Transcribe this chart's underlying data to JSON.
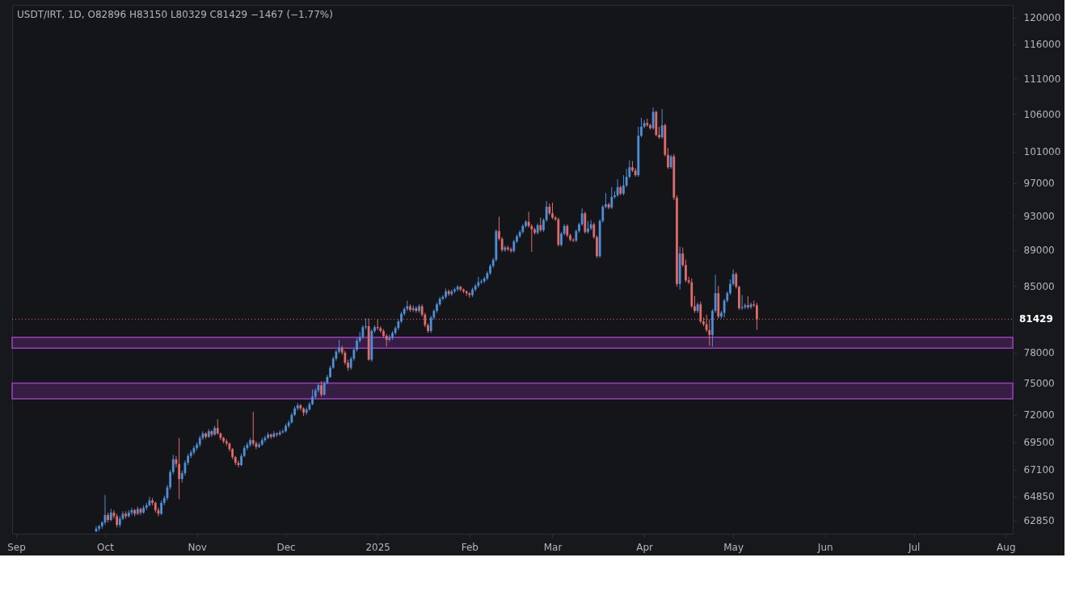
{
  "chart_data": {
    "type": "candlestick",
    "title": "USDT/IRT, 1D, O82896 H83150 L80329 C81429 −1467 (−1.77%)",
    "colors": [
      "#4d8fd8",
      "#4d8fd8",
      "#4d8fd8",
      "#4d8fd8",
      "#e06b6b",
      "#4d8fd8",
      "#e06b6b",
      "#e06b6b",
      "#4d8fd8",
      "#4d8fd8",
      "#e06b6b",
      "#4d8fd8",
      "#4d8fd8",
      "#e06b6b",
      "#4d8fd8",
      "#e06b6b",
      "#4d8fd8",
      "#4d8fd8",
      "#4d8fd8",
      "#e06b6b",
      "#e06b6b",
      "#e06b6b",
      "#4d8fd8",
      "#4d8fd8",
      "#4d8fd8",
      "#4d8fd8",
      "#4d8fd8",
      "#e06b6b",
      "#e06b6b",
      "#4d8fd8",
      "#4d8fd8",
      "#4d8fd8",
      "#4d8fd8",
      "#4d8fd8",
      "#4d8fd8",
      "#4d8fd8",
      "#4d8fd8",
      "#e06b6b",
      "#4d8fd8",
      "#e06b6b",
      "#4d8fd8",
      "#e06b6b",
      "#e06b6b",
      "#e06b6b",
      "#e06b6b",
      "#e06b6b",
      "#e06b6b",
      "#e06b6b",
      "#e06b6b",
      "#4d8fd8",
      "#4d8fd8",
      "#4d8fd8",
      "#4d8fd8",
      "#e06b6b",
      "#e06b6b",
      "#4d8fd8",
      "#4d8fd8",
      "#4d8fd8",
      "#4d8fd8",
      "#e06b6b",
      "#4d8fd8",
      "#e06b6b",
      "#4d8fd8",
      "#4d8fd8",
      "#4d8fd8",
      "#4d8fd8",
      "#4d8fd8",
      "#4d8fd8",
      "#4d8fd8",
      "#e06b6b",
      "#e06b6b",
      "#4d8fd8",
      "#4d8fd8",
      "#4d8fd8",
      "#4d8fd8",
      "#4d8fd8",
      "#e06b6b",
      "#4d8fd8",
      "#4d8fd8",
      "#4d8fd8",
      "#4d8fd8",
      "#4d8fd8",
      "#4d8fd8",
      "#e06b6b",
      "#e06b6b",
      "#e06b6b",
      "#4d8fd8",
      "#4d8fd8",
      "#4d8fd8",
      "#4d8fd8",
      "#4d8fd8",
      "#4d8fd8",
      "#e06b6b",
      "#4d8fd8",
      "#4d8fd8",
      "#e06b6b",
      "#e06b6b",
      "#e06b6b",
      "#e06b6b",
      "#4d8fd8",
      "#4d8fd8",
      "#4d8fd8",
      "#4d8fd8",
      "#4d8fd8",
      "#4d8fd8",
      "#4d8fd8",
      "#e06b6b",
      "#4d8fd8",
      "#e06b6b",
      "#4d8fd8",
      "#e06b6b",
      "#e06b6b",
      "#e06b6b",
      "#4d8fd8",
      "#4d8fd8",
      "#4d8fd8",
      "#4d8fd8",
      "#4d8fd8",
      "#4d8fd8",
      "#e06b6b",
      "#4d8fd8",
      "#4d8fd8",
      "#4d8fd8",
      "#e06b6b",
      "#e06b6b",
      "#e06b6b",
      "#e06b6b",
      "#4d8fd8",
      "#4d8fd8",
      "#4d8fd8",
      "#4d8fd8",
      "#4d8fd8",
      "#4d8fd8",
      "#4d8fd8",
      "#4d8fd8",
      "#4d8fd8",
      "#e06b6b",
      "#e06b6b",
      "#4d8fd8",
      "#e06b6b",
      "#e06b6b",
      "#4d8fd8",
      "#4d8fd8",
      "#4d8fd8",
      "#4d8fd8",
      "#4d8fd8",
      "#e06b6b",
      "#e06b6b",
      "#e06b6b",
      "#4d8fd8",
      "#e06b6b",
      "#4d8fd8",
      "#4d8fd8",
      "#e06b6b",
      "#e06b6b",
      "#e06b6b",
      "#e06b6b",
      "#4d8fd8",
      "#4d8fd8",
      "#e06b6b",
      "#e06b6b",
      "#e06b6b",
      "#4d8fd8",
      "#4d8fd8",
      "#4d8fd8",
      "#e06b6b",
      "#4d8fd8",
      "#4d8fd8",
      "#e06b6b",
      "#e06b6b",
      "#4d8fd8",
      "#4d8fd8",
      "#4d8fd8",
      "#e06b6b",
      "#4d8fd8",
      "#4d8fd8",
      "#4d8fd8",
      "#e06b6b",
      "#4d8fd8",
      "#4d8fd8",
      "#4d8fd8",
      "#e06b6b",
      "#e06b6b",
      "#4d8fd8",
      "#4d8fd8",
      "#4d8fd8",
      "#e06b6b",
      "#e06b6b",
      "#4d8fd8",
      "#e06b6b",
      "#e06b6b",
      "#4d8fd8",
      "#e06b6b",
      "#e06b6b",
      "#4d8fd8",
      "#e06b6b",
      "#e06b6b",
      "#4d8fd8",
      "#e06b6b",
      "#e06b6b",
      "#e06b6b",
      "#e06b6b",
      "#e06b6b",
      "#4d8fd8",
      "#e06b6b",
      "#e06b6b",
      "#e06b6b",
      "#e06b6b",
      "#4d8fd8",
      "#4d8fd8",
      "#e06b6b",
      "#4d8fd8",
      "#4d8fd8",
      "#4d8fd8",
      "#4d8fd8",
      "#4d8fd8",
      "#e06b6b",
      "#e06b6b",
      "#4d8fd8",
      "#4d8fd8",
      "#e06b6b",
      "#4d8fd8",
      "#e06b6b",
      "#e06b6b"
    ],
    "log": true,
    "xlim": [
      "2024-09-01",
      "2025-08-02"
    ],
    "xticks": [
      {
        "value": "2024-09-01",
        "label": "Sep"
      },
      {
        "value": "2024-10-01",
        "label": "Oct"
      },
      {
        "value": "2024-11-01",
        "label": "Nov"
      },
      {
        "value": "2024-12-01",
        "label": "Dec"
      },
      {
        "value": "2025-01-01",
        "label": "2025"
      },
      {
        "value": "2025-02-01",
        "label": "Feb"
      },
      {
        "value": "2025-03-01",
        "label": "Mar"
      },
      {
        "value": "2025-04-01",
        "label": "Apr"
      },
      {
        "value": "2025-05-01",
        "label": "May"
      },
      {
        "value": "2025-06-01",
        "label": "Jun"
      },
      {
        "value": "2025-07-01",
        "label": "Jul"
      },
      {
        "value": "2025-08-01",
        "label": "Aug"
      }
    ],
    "ylim": [
      61800,
      122000
    ],
    "yticks": [
      62850,
      64850,
      67100,
      69500,
      72000,
      75000,
      78000,
      85000,
      89000,
      93000,
      97000,
      101000,
      106000,
      111000,
      116000,
      120000
    ],
    "ref_lines": [
      {
        "axis": "y",
        "value": 81429,
        "label": "81429",
        "color": "#e5695c",
        "line_style": "dotted"
      }
    ],
    "bands": [
      {
        "axis": "y",
        "from": 73500,
        "to": 75000,
        "color": "#9c3cc0"
      },
      {
        "axis": "y",
        "from": 78450,
        "to": 79550,
        "color": "#9c3cc0"
      }
    ],
    "x": [
      "2024-09-28",
      "2024-09-29",
      "2024-09-30",
      "2024-10-01",
      "2024-10-02",
      "2024-10-03",
      "2024-10-04",
      "2024-10-05",
      "2024-10-06",
      "2024-10-07",
      "2024-10-08",
      "2024-10-09",
      "2024-10-10",
      "2024-10-11",
      "2024-10-12",
      "2024-10-13",
      "2024-10-14",
      "2024-10-15",
      "2024-10-16",
      "2024-10-17",
      "2024-10-18",
      "2024-10-19",
      "2024-10-20",
      "2024-10-21",
      "2024-10-22",
      "2024-10-23",
      "2024-10-24",
      "2024-10-25",
      "2024-10-26",
      "2024-10-27",
      "2024-10-28",
      "2024-10-29",
      "2024-10-30",
      "2024-10-31",
      "2024-11-01",
      "2024-11-02",
      "2024-11-03",
      "2024-11-04",
      "2024-11-05",
      "2024-11-06",
      "2024-11-07",
      "2024-11-08",
      "2024-11-09",
      "2024-11-10",
      "2024-11-11",
      "2024-11-12",
      "2024-11-13",
      "2024-11-14",
      "2024-11-15",
      "2024-11-16",
      "2024-11-17",
      "2024-11-18",
      "2024-11-19",
      "2024-11-20",
      "2024-11-21",
      "2024-11-22",
      "2024-11-23",
      "2024-11-24",
      "2024-11-25",
      "2024-11-26",
      "2024-11-27",
      "2024-11-28",
      "2024-11-29",
      "2024-11-30",
      "2024-12-01",
      "2024-12-02",
      "2024-12-03",
      "2024-12-04",
      "2024-12-05",
      "2024-12-06",
      "2024-12-07",
      "2024-12-08",
      "2024-12-09",
      "2024-12-10",
      "2024-12-11",
      "2024-12-12",
      "2024-12-13",
      "2024-12-14",
      "2024-12-15",
      "2024-12-16",
      "2024-12-17",
      "2024-12-18",
      "2024-12-19",
      "2024-12-20",
      "2024-12-21",
      "2024-12-22",
      "2024-12-23",
      "2024-12-24",
      "2024-12-25",
      "2024-12-26",
      "2024-12-27",
      "2024-12-28",
      "2024-12-29",
      "2024-12-30",
      "2024-12-31",
      "2025-01-01",
      "2025-01-02",
      "2025-01-03",
      "2025-01-04",
      "2025-01-05",
      "2025-01-06",
      "2025-01-07",
      "2025-01-08",
      "2025-01-09",
      "2025-01-10",
      "2025-01-11",
      "2025-01-12",
      "2025-01-13",
      "2025-01-14",
      "2025-01-15",
      "2025-01-16",
      "2025-01-17",
      "2025-01-18",
      "2025-01-19",
      "2025-01-20",
      "2025-01-21",
      "2025-01-22",
      "2025-01-23",
      "2025-01-24",
      "2025-01-25",
      "2025-01-26",
      "2025-01-27",
      "2025-01-28",
      "2025-01-29",
      "2025-01-30",
      "2025-01-31",
      "2025-02-01",
      "2025-02-02",
      "2025-02-03",
      "2025-02-04",
      "2025-02-05",
      "2025-02-06",
      "2025-02-07",
      "2025-02-08",
      "2025-02-09",
      "2025-02-10",
      "2025-02-11",
      "2025-02-12",
      "2025-02-13",
      "2025-02-14",
      "2025-02-15",
      "2025-02-16",
      "2025-02-17",
      "2025-02-18",
      "2025-02-19",
      "2025-02-20",
      "2025-02-21",
      "2025-02-22",
      "2025-02-23",
      "2025-02-24",
      "2025-02-25",
      "2025-02-26",
      "2025-02-27",
      "2025-02-28",
      "2025-03-01",
      "2025-03-02",
      "2025-03-03",
      "2025-03-04",
      "2025-03-05",
      "2025-03-06",
      "2025-03-07",
      "2025-03-08",
      "2025-03-09",
      "2025-03-10",
      "2025-03-11",
      "2025-03-12",
      "2025-03-13",
      "2025-03-14",
      "2025-03-15",
      "2025-03-16",
      "2025-03-17",
      "2025-03-18",
      "2025-03-19",
      "2025-03-20",
      "2025-03-21",
      "2025-03-22",
      "2025-03-23",
      "2025-03-24",
      "2025-03-25",
      "2025-03-26",
      "2025-03-27",
      "2025-03-28",
      "2025-03-29",
      "2025-03-30",
      "2025-03-31",
      "2025-04-01",
      "2025-04-02",
      "2025-04-03",
      "2025-04-04",
      "2025-04-05",
      "2025-04-06",
      "2025-04-07",
      "2025-04-08",
      "2025-04-09",
      "2025-04-10",
      "2025-04-11",
      "2025-04-12",
      "2025-04-13",
      "2025-04-14",
      "2025-04-15",
      "2025-04-16",
      "2025-04-17",
      "2025-04-18",
      "2025-04-19",
      "2025-04-20",
      "2025-04-21",
      "2025-04-22",
      "2025-04-23",
      "2025-04-24",
      "2025-04-25",
      "2025-04-26",
      "2025-04-27",
      "2025-04-28",
      "2025-04-29",
      "2025-04-30",
      "2025-05-01",
      "2025-05-02",
      "2025-05-03",
      "2025-05-04",
      "2025-05-05",
      "2025-05-06",
      "2025-05-07",
      "2025-05-08",
      "2025-05-09"
    ],
    "ohlc": [
      [
        62000,
        62400,
        61900,
        62200
      ],
      [
        62200,
        62500,
        62000,
        62400
      ],
      [
        62400,
        62800,
        62200,
        62700
      ],
      [
        62700,
        64950,
        62500,
        63300
      ],
      [
        63300,
        63500,
        62700,
        62900
      ],
      [
        62900,
        63800,
        62800,
        63500
      ],
      [
        63500,
        63700,
        63000,
        63200
      ],
      [
        63200,
        63400,
        62300,
        62500
      ],
      [
        62500,
        63200,
        62300,
        63000
      ],
      [
        63000,
        63600,
        62900,
        63400
      ],
      [
        63400,
        63600,
        63000,
        63200
      ],
      [
        63200,
        63700,
        63100,
        63500
      ],
      [
        63500,
        63900,
        63300,
        63700
      ],
      [
        63700,
        63800,
        63200,
        63400
      ],
      [
        63400,
        64000,
        63300,
        63800
      ],
      [
        63800,
        63900,
        63300,
        63500
      ],
      [
        63500,
        64100,
        63400,
        63900
      ],
      [
        63900,
        64300,
        63700,
        64100
      ],
      [
        64100,
        64800,
        64000,
        64500
      ],
      [
        64500,
        64700,
        64100,
        64300
      ],
      [
        64300,
        64400,
        63500,
        63700
      ],
      [
        63700,
        63900,
        63200,
        63400
      ],
      [
        63400,
        64500,
        63300,
        64300
      ],
      [
        64300,
        64900,
        64100,
        64700
      ],
      [
        64700,
        65800,
        64500,
        65600
      ],
      [
        65600,
        67100,
        65400,
        66900
      ],
      [
        66900,
        68400,
        66700,
        68000
      ],
      [
        68000,
        68300,
        67300,
        67600
      ],
      [
        67600,
        69900,
        64600,
        66300
      ],
      [
        66300,
        67000,
        66000,
        66800
      ],
      [
        66800,
        67900,
        66600,
        67700
      ],
      [
        67700,
        68500,
        67500,
        68300
      ],
      [
        68300,
        68800,
        68100,
        68600
      ],
      [
        68600,
        69200,
        68400,
        69000
      ],
      [
        69000,
        69500,
        68800,
        69300
      ],
      [
        69300,
        70100,
        69100,
        69900
      ],
      [
        69900,
        70500,
        69700,
        70300
      ],
      [
        70300,
        70400,
        69800,
        70000
      ],
      [
        70000,
        70700,
        69900,
        70500
      ],
      [
        70500,
        70600,
        70000,
        70200
      ],
      [
        70200,
        71000,
        70100,
        70800
      ],
      [
        70800,
        71600,
        70200,
        70300
      ],
      [
        70300,
        70400,
        69700,
        69900
      ],
      [
        69900,
        70000,
        69400,
        69600
      ],
      [
        69600,
        69800,
        69200,
        69400
      ],
      [
        69400,
        69500,
        68700,
        68900
      ],
      [
        68900,
        69000,
        68000,
        68200
      ],
      [
        68200,
        68300,
        67500,
        67700
      ],
      [
        67700,
        67900,
        67300,
        67500
      ],
      [
        67500,
        68500,
        67400,
        68300
      ],
      [
        68300,
        69200,
        68200,
        69000
      ],
      [
        69000,
        69500,
        68800,
        69300
      ],
      [
        69300,
        69900,
        69100,
        69700
      ],
      [
        69700,
        72300,
        69200,
        69400
      ],
      [
        69400,
        69600,
        68900,
        69100
      ],
      [
        69100,
        69500,
        69000,
        69300
      ],
      [
        69300,
        69900,
        69200,
        69700
      ],
      [
        69700,
        70100,
        69500,
        69900
      ],
      [
        69900,
        70400,
        69800,
        70200
      ],
      [
        70200,
        70300,
        69800,
        70000
      ],
      [
        70000,
        70500,
        69900,
        70300
      ],
      [
        70300,
        70400,
        70000,
        70200
      ],
      [
        70200,
        70600,
        70100,
        70400
      ],
      [
        70400,
        70700,
        70300,
        70500
      ],
      [
        70500,
        71200,
        70400,
        71000
      ],
      [
        71000,
        71500,
        70800,
        71300
      ],
      [
        71300,
        72200,
        71200,
        72000
      ],
      [
        72000,
        72800,
        71900,
        72600
      ],
      [
        72600,
        73100,
        72400,
        72900
      ],
      [
        72900,
        73000,
        72400,
        72600
      ],
      [
        72600,
        72700,
        71900,
        72200
      ],
      [
        72200,
        72700,
        72000,
        72500
      ],
      [
        72500,
        73200,
        72400,
        73000
      ],
      [
        73000,
        74400,
        72900,
        73700
      ],
      [
        73700,
        74500,
        73500,
        74300
      ],
      [
        74300,
        75000,
        74100,
        74800
      ],
      [
        74800,
        75200,
        73700,
        73900
      ],
      [
        73900,
        75200,
        73800,
        75000
      ],
      [
        75000,
        75800,
        74900,
        75600
      ],
      [
        75600,
        76700,
        75500,
        76500
      ],
      [
        76500,
        77600,
        76400,
        77400
      ],
      [
        77400,
        78300,
        77200,
        78100
      ],
      [
        78100,
        79300,
        77900,
        78500
      ],
      [
        78500,
        78700,
        77800,
        78000
      ],
      [
        78000,
        78200,
        76800,
        77000
      ],
      [
        77000,
        77300,
        76200,
        76500
      ],
      [
        76500,
        77600,
        76300,
        77400
      ],
      [
        77400,
        78500,
        77200,
        78300
      ],
      [
        78300,
        79500,
        78100,
        79200
      ],
      [
        79200,
        80100,
        79000,
        79600
      ],
      [
        79600,
        80800,
        79400,
        80600
      ],
      [
        80600,
        81500,
        80400,
        80700
      ],
      [
        80700,
        81500,
        77200,
        77300
      ],
      [
        77300,
        80400,
        77100,
        80200
      ],
      [
        80200,
        80800,
        80000,
        80600
      ],
      [
        80600,
        81400,
        80300,
        80500
      ],
      [
        80500,
        80700,
        80000,
        80200
      ],
      [
        80200,
        80400,
        79500,
        79700
      ],
      [
        79700,
        79900,
        78600,
        79300
      ],
      [
        79300,
        79800,
        79100,
        79500
      ],
      [
        79500,
        80200,
        79300,
        80000
      ],
      [
        80000,
        80700,
        79800,
        80500
      ],
      [
        80500,
        81400,
        80300,
        81200
      ],
      [
        81200,
        82200,
        81000,
        82000
      ],
      [
        82000,
        82700,
        81800,
        82500
      ],
      [
        82500,
        83400,
        82300,
        82800
      ],
      [
        82800,
        83000,
        82200,
        82400
      ],
      [
        82400,
        82900,
        82200,
        82600
      ],
      [
        82600,
        82800,
        82100,
        82300
      ],
      [
        82300,
        83000,
        82100,
        82800
      ],
      [
        82800,
        83000,
        81700,
        81900
      ],
      [
        81900,
        82100,
        80600,
        80800
      ],
      [
        80800,
        81000,
        80000,
        80200
      ],
      [
        80200,
        81800,
        80000,
        81600
      ],
      [
        81600,
        82500,
        81400,
        82300
      ],
      [
        82300,
        83200,
        82100,
        83000
      ],
      [
        83000,
        83800,
        82800,
        83600
      ],
      [
        83600,
        84000,
        83400,
        83800
      ],
      [
        83800,
        84700,
        83600,
        84400
      ],
      [
        84400,
        84600,
        83900,
        84100
      ],
      [
        84100,
        84600,
        83900,
        84400
      ],
      [
        84400,
        84800,
        84200,
        84600
      ],
      [
        84600,
        85100,
        84400,
        84900
      ],
      [
        84900,
        85000,
        84400,
        84600
      ],
      [
        84600,
        84700,
        84200,
        84400
      ],
      [
        84400,
        84500,
        83900,
        84200
      ],
      [
        84200,
        84300,
        83700,
        84000
      ],
      [
        84000,
        84800,
        83800,
        84600
      ],
      [
        84600,
        85200,
        84400,
        85000
      ],
      [
        85000,
        86000,
        84800,
        85400
      ],
      [
        85400,
        85700,
        85200,
        85500
      ],
      [
        85500,
        86000,
        85300,
        85800
      ],
      [
        85800,
        86600,
        85600,
        86400
      ],
      [
        86400,
        87400,
        86200,
        87200
      ],
      [
        87200,
        88100,
        87000,
        87900
      ],
      [
        87900,
        91400,
        87700,
        91200
      ],
      [
        91200,
        92900,
        90100,
        90300
      ],
      [
        90300,
        90500,
        88800,
        89000
      ],
      [
        89000,
        89500,
        88800,
        89300
      ],
      [
        89300,
        89500,
        88900,
        89100
      ],
      [
        89100,
        89300,
        88700,
        88900
      ],
      [
        88900,
        90200,
        88700,
        90000
      ],
      [
        90000,
        90800,
        89800,
        90600
      ],
      [
        90600,
        91300,
        90400,
        91100
      ],
      [
        91100,
        92000,
        90900,
        91800
      ],
      [
        91800,
        92500,
        91600,
        92300
      ],
      [
        92300,
        93500,
        91600,
        91800
      ],
      [
        91800,
        92000,
        88800,
        91400
      ],
      [
        91400,
        91600,
        90800,
        91000
      ],
      [
        91000,
        92100,
        90800,
        91900
      ],
      [
        91900,
        92800,
        91100,
        91300
      ],
      [
        91300,
        92700,
        91100,
        92500
      ],
      [
        92500,
        94800,
        92300,
        94100
      ],
      [
        94100,
        94500,
        93100,
        93300
      ],
      [
        93300,
        94600,
        92600,
        92800
      ],
      [
        92800,
        93000,
        92400,
        92600
      ],
      [
        92600,
        92800,
        89400,
        89600
      ],
      [
        89600,
        91100,
        89400,
        90900
      ],
      [
        90900,
        92000,
        90700,
        91800
      ],
      [
        91800,
        92000,
        90500,
        90700
      ],
      [
        90700,
        90900,
        90000,
        90200
      ],
      [
        90200,
        90400,
        89900,
        90100
      ],
      [
        90100,
        91400,
        89900,
        91200
      ],
      [
        91200,
        92200,
        91000,
        92000
      ],
      [
        92000,
        93900,
        91800,
        93300
      ],
      [
        93300,
        93500,
        90900,
        91100
      ],
      [
        91100,
        92400,
        90900,
        91500
      ],
      [
        91500,
        92500,
        91300,
        92000
      ],
      [
        92000,
        92200,
        90300,
        90500
      ],
      [
        90500,
        90700,
        88100,
        88300
      ],
      [
        88300,
        92600,
        88100,
        92400
      ],
      [
        92400,
        94300,
        92200,
        94100
      ],
      [
        94100,
        95800,
        93900,
        94400
      ],
      [
        94400,
        94600,
        93800,
        94000
      ],
      [
        94000,
        96500,
        93800,
        95300
      ],
      [
        95300,
        96000,
        95100,
        95500
      ],
      [
        95500,
        97500,
        95300,
        96500
      ],
      [
        96500,
        96700,
        95500,
        95700
      ],
      [
        95700,
        98000,
        95500,
        96700
      ],
      [
        96700,
        98800,
        96500,
        97800
      ],
      [
        97800,
        99900,
        97600,
        99000
      ],
      [
        99000,
        99800,
        98400,
        98600
      ],
      [
        98600,
        98900,
        97800,
        98000
      ],
      [
        98000,
        104300,
        97800,
        103100
      ],
      [
        103100,
        105500,
        102900,
        104300
      ],
      [
        104300,
        105200,
        104100,
        104800
      ],
      [
        104800,
        105400,
        104300,
        104500
      ],
      [
        104500,
        104700,
        103900,
        104100
      ],
      [
        104100,
        106900,
        103900,
        106300
      ],
      [
        106300,
        106500,
        103000,
        103200
      ],
      [
        103200,
        104300,
        102700,
        102900
      ],
      [
        102900,
        106700,
        102700,
        104500
      ],
      [
        104500,
        104700,
        100400,
        100600
      ],
      [
        100600,
        101500,
        98800,
        99000
      ],
      [
        99000,
        100600,
        98800,
        100400
      ],
      [
        100400,
        100700,
        94900,
        95200
      ],
      [
        95200,
        95500,
        84900,
        85200
      ],
      [
        85200,
        89400,
        84600,
        88600
      ],
      [
        88600,
        89300,
        87100,
        87300
      ],
      [
        87300,
        87900,
        85400,
        85600
      ],
      [
        85600,
        86000,
        85200,
        85400
      ],
      [
        85400,
        85800,
        82600,
        82800
      ],
      [
        82800,
        83900,
        82100,
        82300
      ],
      [
        82300,
        83200,
        82100,
        83000
      ],
      [
        83000,
        83300,
        81000,
        81200
      ],
      [
        81200,
        81600,
        80700,
        80900
      ],
      [
        80900,
        81900,
        80100,
        80300
      ],
      [
        80300,
        81400,
        78700,
        79800
      ],
      [
        79800,
        82500,
        78600,
        82300
      ],
      [
        82300,
        86200,
        82100,
        84200
      ],
      [
        84200,
        85000,
        81500,
        81700
      ],
      [
        81700,
        82300,
        81500,
        82100
      ],
      [
        82100,
        83600,
        81600,
        83400
      ],
      [
        83400,
        84400,
        83200,
        84200
      ],
      [
        84200,
        85700,
        84000,
        85200
      ],
      [
        85200,
        86800,
        85000,
        86300
      ],
      [
        86300,
        86500,
        84700,
        84900
      ],
      [
        84900,
        85000,
        82400,
        82600
      ],
      [
        82600,
        84000,
        82400,
        82700
      ],
      [
        82700,
        83100,
        82500,
        82900
      ],
      [
        82900,
        83900,
        82500,
        82700
      ],
      [
        82700,
        83200,
        82500,
        83000
      ],
      [
        83000,
        83400,
        82700,
        82896
      ],
      [
        82896,
        83150,
        80329,
        81429
      ]
    ]
  }
}
